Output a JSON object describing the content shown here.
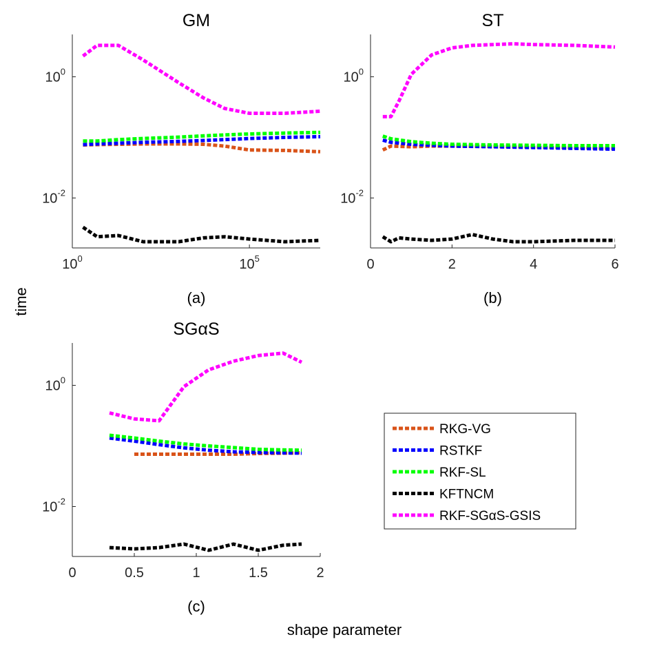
{
  "figure": {
    "ylabel": "time",
    "xlabel": "shape parameter"
  },
  "legend": {
    "placement": "lower-right",
    "entries": [
      {
        "name": "RKG-VG",
        "color": "#d95319"
      },
      {
        "name": "RSTKF",
        "color": "#0000ff"
      },
      {
        "name": "RKF-SL",
        "color": "#00ff00"
      },
      {
        "name": "KFTNCM",
        "color": "#000000"
      },
      {
        "name": "RKF-SGαS-GSIS",
        "color": "#ff00ff"
      }
    ]
  },
  "chart_data": [
    {
      "type": "line",
      "title": "GM",
      "panel_label": "(a)",
      "xscale": "log",
      "yscale": "log",
      "xlim": [
        1,
        10000000
      ],
      "ylim": [
        0.0015,
        5
      ],
      "xticks": [
        {
          "value": 1,
          "base": "10",
          "exp": "0"
        },
        {
          "value": 100000,
          "base": "10",
          "exp": "5"
        }
      ],
      "yticks": [
        {
          "value": 0.01,
          "base": "10",
          "exp": "-2"
        },
        {
          "value": 1,
          "base": "10",
          "exp": "0"
        }
      ],
      "grid": false,
      "series": [
        {
          "name": "RKG-VG",
          "x": [
            2,
            5,
            20,
            100,
            1000,
            5000,
            20000,
            100000,
            1000000,
            10000000
          ],
          "y": [
            0.075,
            0.076,
            0.077,
            0.078,
            0.078,
            0.077,
            0.072,
            0.062,
            0.061,
            0.058
          ]
        },
        {
          "name": "RSTKF",
          "x": [
            2,
            5,
            20,
            100,
            1000,
            5000,
            20000,
            100000,
            1000000,
            10000000
          ],
          "y": [
            0.076,
            0.078,
            0.08,
            0.083,
            0.086,
            0.089,
            0.092,
            0.096,
            0.1,
            0.103
          ]
        },
        {
          "name": "RKF-SL",
          "x": [
            2,
            5,
            20,
            100,
            1000,
            5000,
            20000,
            100000,
            1000000,
            10000000
          ],
          "y": [
            0.087,
            0.087,
            0.092,
            0.096,
            0.101,
            0.106,
            0.11,
            0.114,
            0.118,
            0.121
          ]
        },
        {
          "name": "KFTNCM",
          "x": [
            2,
            5,
            20,
            100,
            1000,
            5000,
            20000,
            100000,
            1000000,
            10000000
          ],
          "y": [
            0.0033,
            0.0023,
            0.0024,
            0.0019,
            0.0019,
            0.0022,
            0.0023,
            0.0021,
            0.0019,
            0.002
          ]
        },
        {
          "name": "RKF-SGαS-GSIS",
          "x": [
            2,
            5,
            20,
            100,
            1000,
            5000,
            20000,
            100000,
            1000000,
            10000000
          ],
          "y": [
            2.2,
            3.3,
            3.3,
            1.9,
            0.8,
            0.45,
            0.3,
            0.25,
            0.25,
            0.27
          ]
        }
      ]
    },
    {
      "type": "line",
      "title": "ST",
      "panel_label": "(b)",
      "xscale": "linear",
      "yscale": "log",
      "xlim": [
        0,
        6
      ],
      "ylim": [
        0.0015,
        5
      ],
      "xticks": [
        {
          "value": 0,
          "text": "0"
        },
        {
          "value": 2,
          "text": "2"
        },
        {
          "value": 4,
          "text": "4"
        },
        {
          "value": 6,
          "text": "6"
        }
      ],
      "yticks": [
        {
          "value": 0.01,
          "base": "10",
          "exp": "-2"
        },
        {
          "value": 1,
          "base": "10",
          "exp": "0"
        }
      ],
      "grid": false,
      "series": [
        {
          "name": "RKG-VG",
          "x": [
            0.3,
            0.5,
            1,
            1.5,
            2,
            3,
            4,
            5,
            6
          ],
          "y": [
            0.062,
            0.072,
            0.07,
            0.072,
            0.072,
            0.071,
            0.07,
            0.068,
            0.066
          ]
        },
        {
          "name": "RSTKF",
          "x": [
            0.3,
            0.5,
            1,
            1.5,
            2,
            3,
            4,
            5,
            6
          ],
          "y": [
            0.09,
            0.083,
            0.077,
            0.074,
            0.072,
            0.07,
            0.068,
            0.066,
            0.064
          ]
        },
        {
          "name": "RKF-SL",
          "x": [
            0.3,
            0.5,
            1,
            1.5,
            2,
            3,
            4,
            5,
            6
          ],
          "y": [
            0.105,
            0.095,
            0.085,
            0.08,
            0.077,
            0.075,
            0.074,
            0.073,
            0.073
          ]
        },
        {
          "name": "KFTNCM",
          "x": [
            0.3,
            0.5,
            0.7,
            1,
            1.5,
            2,
            2.5,
            3,
            3.5,
            4,
            5,
            6
          ],
          "y": [
            0.0023,
            0.0019,
            0.0022,
            0.0021,
            0.002,
            0.0021,
            0.0025,
            0.0021,
            0.0019,
            0.0019,
            0.002,
            0.002
          ]
        },
        {
          "name": "RKF-SGαS-GSIS",
          "x": [
            0.3,
            0.5,
            0.7,
            1,
            1.5,
            2,
            2.5,
            3,
            3.5,
            4,
            5,
            6
          ],
          "y": [
            0.22,
            0.22,
            0.4,
            1.1,
            2.3,
            3.0,
            3.3,
            3.4,
            3.5,
            3.4,
            3.3,
            3.1
          ]
        }
      ]
    },
    {
      "type": "line",
      "title": "SGαS",
      "panel_label": "(c)",
      "xscale": "linear",
      "yscale": "log",
      "xlim": [
        0,
        2
      ],
      "ylim": [
        0.0015,
        5
      ],
      "xticks": [
        {
          "value": 0,
          "text": "0"
        },
        {
          "value": 0.5,
          "text": "0.5"
        },
        {
          "value": 1,
          "text": "1"
        },
        {
          "value": 1.5,
          "text": "1.5"
        },
        {
          "value": 2,
          "text": "2"
        }
      ],
      "yticks": [
        {
          "value": 0.01,
          "base": "10",
          "exp": "-2"
        },
        {
          "value": 1,
          "base": "10",
          "exp": "0"
        }
      ],
      "grid": false,
      "series": [
        {
          "name": "RKG-VG",
          "x": [
            0.5,
            0.7,
            0.9,
            1.1,
            1.3,
            1.5,
            1.7,
            1.85
          ],
          "y": [
            0.073,
            0.073,
            0.073,
            0.073,
            0.073,
            0.075,
            0.076,
            0.077
          ]
        },
        {
          "name": "RSTKF",
          "x": [
            0.3,
            0.5,
            0.7,
            0.9,
            1.1,
            1.3,
            1.5,
            1.7,
            1.85
          ],
          "y": [
            0.135,
            0.12,
            0.105,
            0.093,
            0.085,
            0.08,
            0.078,
            0.077,
            0.076
          ]
        },
        {
          "name": "RKF-SL",
          "x": [
            0.3,
            0.5,
            0.7,
            0.9,
            1.1,
            1.3,
            1.5,
            1.7,
            1.85
          ],
          "y": [
            0.15,
            0.135,
            0.12,
            0.108,
            0.1,
            0.094,
            0.088,
            0.086,
            0.085
          ]
        },
        {
          "name": "KFTNCM",
          "x": [
            0.3,
            0.5,
            0.7,
            0.9,
            1.1,
            1.3,
            1.5,
            1.7,
            1.85
          ],
          "y": [
            0.0021,
            0.002,
            0.0021,
            0.0024,
            0.0019,
            0.0024,
            0.0019,
            0.0023,
            0.0024
          ]
        },
        {
          "name": "RKF-SGαS-GSIS",
          "x": [
            0.3,
            0.5,
            0.7,
            0.9,
            1.1,
            1.3,
            1.5,
            1.7,
            1.85
          ],
          "y": [
            0.35,
            0.28,
            0.26,
            0.95,
            1.8,
            2.5,
            3.1,
            3.4,
            2.4
          ]
        }
      ]
    }
  ]
}
